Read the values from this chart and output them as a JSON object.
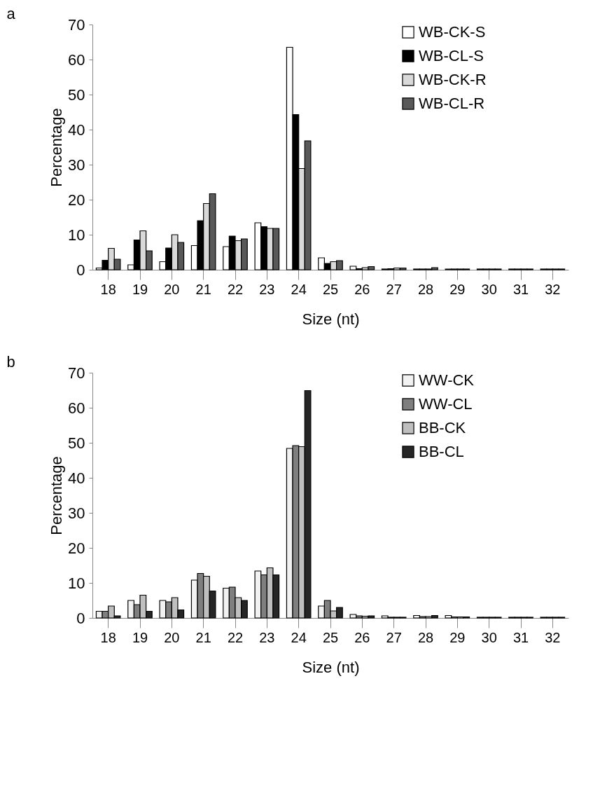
{
  "chart_data": [
    {
      "type": "bar",
      "title": "a",
      "xlabel": "Size (nt)",
      "ylabel": "Percentage",
      "categories": [
        "18",
        "19",
        "20",
        "21",
        "22",
        "23",
        "24",
        "25",
        "26",
        "27",
        "28",
        "29",
        "30",
        "31",
        "32"
      ],
      "series": [
        {
          "name": "WB-CK-S",
          "color": "#ffffff",
          "values": [
            0.5,
            1.4,
            2.3,
            6.9,
            6.6,
            13.4,
            63.5,
            3.4,
            1.0,
            0.2,
            0.2,
            0.2,
            0.2,
            0.2,
            0.2
          ]
        },
        {
          "name": "WB-CL-S",
          "color": "#000000",
          "values": [
            2.7,
            8.5,
            6.2,
            14.0,
            9.6,
            12.3,
            44.3,
            1.8,
            0.3,
            0.3,
            0.2,
            0.2,
            0.2,
            0.2,
            0.2
          ]
        },
        {
          "name": "WB-CK-R",
          "color": "#d9d9d9",
          "values": [
            6.1,
            11.1,
            10.0,
            18.9,
            8.3,
            11.8,
            28.9,
            2.3,
            0.6,
            0.5,
            0.2,
            0.2,
            0.2,
            0.2,
            0.2
          ]
        },
        {
          "name": "WB-CL-R",
          "color": "#595959",
          "values": [
            3.0,
            5.4,
            7.8,
            21.7,
            8.8,
            11.8,
            36.8,
            2.6,
            0.9,
            0.5,
            0.6,
            0.2,
            0.2,
            0.2,
            0.2
          ]
        }
      ],
      "ylim": [
        0,
        70
      ],
      "yticks": [
        0,
        10,
        20,
        30,
        40,
        50,
        60,
        70
      ],
      "grid": false,
      "legend": "right"
    },
    {
      "type": "bar",
      "title": "b",
      "xlabel": "Size (nt)",
      "ylabel": "Percentage",
      "categories": [
        "18",
        "19",
        "20",
        "21",
        "22",
        "23",
        "24",
        "25",
        "26",
        "27",
        "28",
        "29",
        "30",
        "31",
        "32"
      ],
      "series": [
        {
          "name": "WW-CK",
          "color": "#f2f2f2",
          "values": [
            1.9,
            5.0,
            5.0,
            10.8,
            8.5,
            13.4,
            48.4,
            3.4,
            1.0,
            0.6,
            0.7,
            0.7,
            0.2,
            0.2,
            0.2
          ]
        },
        {
          "name": "WW-CL",
          "color": "#7f7f7f",
          "values": [
            1.9,
            3.8,
            4.6,
            12.7,
            8.8,
            12.3,
            49.2,
            5.0,
            0.6,
            0.2,
            0.4,
            0.3,
            0.2,
            0.2,
            0.2
          ]
        },
        {
          "name": "BB-CK",
          "color": "#bfbfbf",
          "values": [
            3.4,
            6.5,
            5.8,
            11.9,
            5.8,
            14.3,
            48.9,
            2.0,
            0.5,
            0.2,
            0.4,
            0.3,
            0.2,
            0.2,
            0.2
          ]
        },
        {
          "name": "BB-CL",
          "color": "#262626",
          "values": [
            0.6,
            1.9,
            2.3,
            7.7,
            5.0,
            12.3,
            64.9,
            3.0,
            0.6,
            0.2,
            0.7,
            0.3,
            0.2,
            0.2,
            0.2
          ]
        }
      ],
      "ylim": [
        0,
        70
      ],
      "yticks": [
        0,
        10,
        20,
        30,
        40,
        50,
        60,
        70
      ],
      "grid": false,
      "legend": "right"
    }
  ]
}
